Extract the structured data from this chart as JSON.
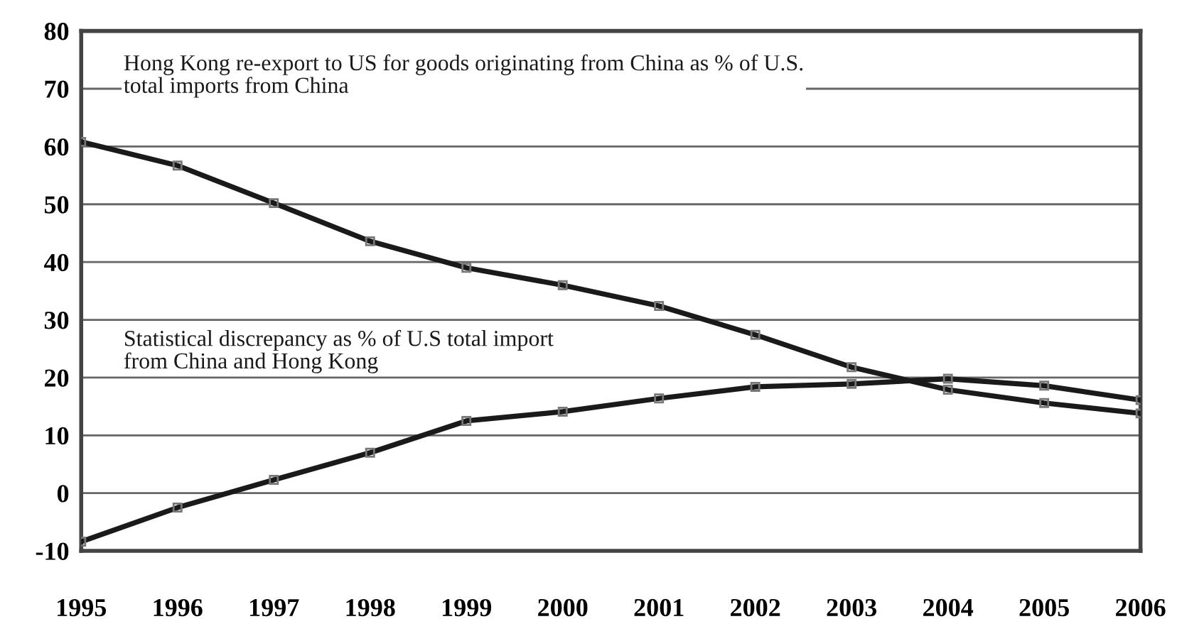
{
  "chart_data": {
    "type": "line",
    "x": [
      1995,
      1996,
      1997,
      1998,
      1999,
      2000,
      2001,
      2002,
      2003,
      2004,
      2005,
      2006
    ],
    "series": [
      {
        "name": "Hong Kong re-export to US for goods originating from China as % of U.S. total imports from China",
        "color": "#1a1a1a",
        "values": [
          60.8,
          56.7,
          50.2,
          43.6,
          39.0,
          36.0,
          32.4,
          27.4,
          21.8,
          17.9,
          15.6,
          13.8
        ]
      },
      {
        "name": "Statistical discrepancy as % of U.S total import from China and Hong Kong",
        "color": "#1a1a1a",
        "values": [
          -8.4,
          -2.5,
          2.3,
          7.0,
          12.5,
          14.1,
          16.4,
          18.4,
          18.9,
          19.8,
          18.6,
          16.1
        ]
      }
    ],
    "xlim": [
      1995,
      2006
    ],
    "xticks": [
      1995,
      1996,
      1997,
      1998,
      1999,
      2000,
      2001,
      2002,
      2003,
      2004,
      2005,
      2006
    ],
    "ylim": [
      -10,
      80
    ],
    "yticks": [
      -10,
      0,
      10,
      20,
      30,
      40,
      50,
      60,
      70,
      80
    ],
    "grid": "y",
    "legend": false,
    "marker": "square",
    "line_style": "solid"
  }
}
